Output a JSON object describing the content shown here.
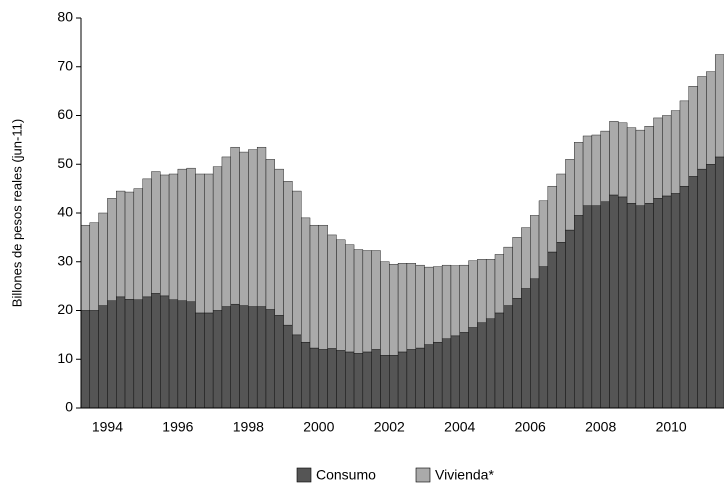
{
  "chart_data": {
    "type": "stacked_bar",
    "y_label": "Billones de pesos reales (jun-11)",
    "categories": [
      null,
      null,
      null,
      "1994",
      null,
      null,
      null,
      null,
      null,
      null,
      null,
      "1996",
      null,
      null,
      null,
      null,
      null,
      null,
      null,
      "1998",
      null,
      null,
      null,
      null,
      null,
      null,
      null,
      "2000",
      null,
      null,
      null,
      null,
      null,
      null,
      null,
      "2002",
      null,
      null,
      null,
      null,
      null,
      null,
      null,
      "2004",
      null,
      null,
      null,
      null,
      null,
      null,
      null,
      "2006",
      null,
      null,
      null,
      null,
      null,
      null,
      null,
      "2008",
      null,
      null,
      null,
      null,
      null,
      null,
      null,
      "2010",
      null,
      null,
      null,
      null,
      null
    ],
    "series": [
      {
        "name": "Consumo",
        "color": "#555555",
        "values": [
          20,
          20,
          21,
          22,
          22.8,
          22.3,
          22.2,
          22.8,
          23.5,
          23,
          22.2,
          22,
          21.8,
          19.5,
          19.5,
          20,
          20.8,
          21.3,
          21,
          20.8,
          20.8,
          20.2,
          19,
          17,
          15,
          13.5,
          12.3,
          12,
          12.2,
          11.8,
          11.5,
          11.2,
          11.5,
          12,
          10.8,
          10.8,
          11.5,
          12,
          12.3,
          13,
          13.5,
          14.2,
          14.8,
          15.5,
          16.5,
          17.5,
          18.3,
          19.5,
          21,
          22.5,
          24.5,
          26.5,
          29,
          32,
          34,
          36.5,
          39.5,
          41.5,
          41.5,
          42.3,
          43.7,
          43.3,
          42,
          41.5,
          42,
          43,
          43.5,
          44,
          45.5,
          47.5,
          49,
          50,
          51.5
        ]
      },
      {
        "name": "Vivienda*",
        "color": "#aaaaaa",
        "values": [
          17.5,
          18,
          19,
          21,
          21.7,
          22,
          22.8,
          24.2,
          25,
          24.8,
          25.8,
          27,
          27.4,
          28.5,
          28.5,
          29.5,
          30.7,
          32.2,
          31.5,
          32.2,
          32.7,
          30.8,
          30,
          29.5,
          29.5,
          25.5,
          25.2,
          25.5,
          23.3,
          22.7,
          22,
          21.3,
          20.8,
          20.3,
          19.2,
          18.7,
          18.2,
          17.7,
          17,
          15.9,
          15.5,
          15.1,
          14.4,
          13.8,
          13.7,
          13,
          12.2,
          12,
          12,
          12.5,
          12.5,
          13,
          13.5,
          13.5,
          14,
          14.5,
          15,
          14.3,
          14.5,
          14.5,
          15.1,
          15.2,
          15.5,
          15.5,
          15.8,
          16.5,
          16.5,
          17,
          17.5,
          18.5,
          19,
          19,
          21
        ]
      }
    ],
    "ylim": [
      0,
      80
    ],
    "yticks": [
      0,
      10,
      20,
      30,
      40,
      50,
      60,
      70,
      80
    ],
    "grid": false,
    "legend": "bottom"
  }
}
